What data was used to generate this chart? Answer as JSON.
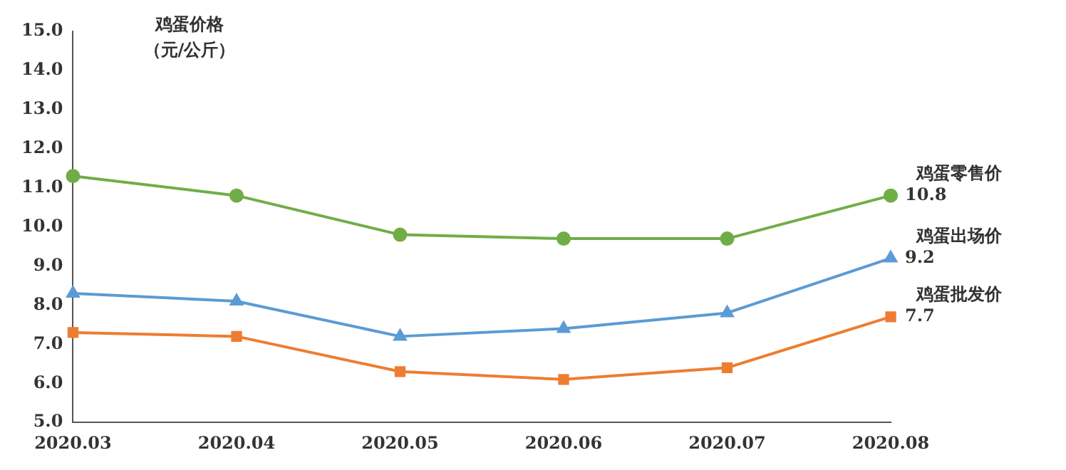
{
  "chart_data": {
    "type": "line",
    "ylabel": "鸡蛋价格（元/公斤）",
    "categories": [
      "2020.03",
      "2020.04",
      "2020.05",
      "2020.06",
      "2020.07",
      "2020.08"
    ],
    "series": [
      {
        "name": "鸡蛋零售价",
        "color": "#70ad47",
        "marker": "circle",
        "values": [
          11.3,
          10.8,
          9.8,
          9.7,
          9.7,
          10.8
        ],
        "value_labels": [
          null,
          null,
          null,
          null,
          null,
          "10.8"
        ]
      },
      {
        "name": "鸡蛋出场价",
        "color": "#5b9bd5",
        "marker": "triangle",
        "values": [
          8.3,
          8.1,
          7.2,
          7.4,
          7.8,
          9.2
        ],
        "value_labels": [
          null,
          null,
          null,
          null,
          null,
          "9.2"
        ]
      },
      {
        "name": "鸡蛋批发价",
        "color": "#ed7d31",
        "marker": "square",
        "values": [
          7.3,
          7.2,
          6.3,
          6.1,
          6.4,
          7.7
        ],
        "value_labels": [
          null,
          null,
          null,
          null,
          null,
          "7.7"
        ]
      }
    ],
    "ylim": [
      5,
      15
    ],
    "yticks": [
      {
        "value": 5,
        "label": "5.0"
      },
      {
        "value": 6,
        "label": "6.0"
      },
      {
        "value": 7,
        "label": "7.0"
      },
      {
        "value": 8,
        "label": "8.0"
      },
      {
        "value": 9,
        "label": "9.0"
      },
      {
        "value": 10,
        "label": "10.0"
      },
      {
        "value": 11,
        "label": "11.0"
      },
      {
        "value": 12,
        "label": "12.0"
      },
      {
        "value": 13,
        "label": "13.0"
      },
      {
        "value": 14,
        "label": "14.0"
      },
      {
        "value": 15,
        "label": "15.0"
      }
    ],
    "grid": false,
    "legend": false,
    "line_style": "solid"
  }
}
